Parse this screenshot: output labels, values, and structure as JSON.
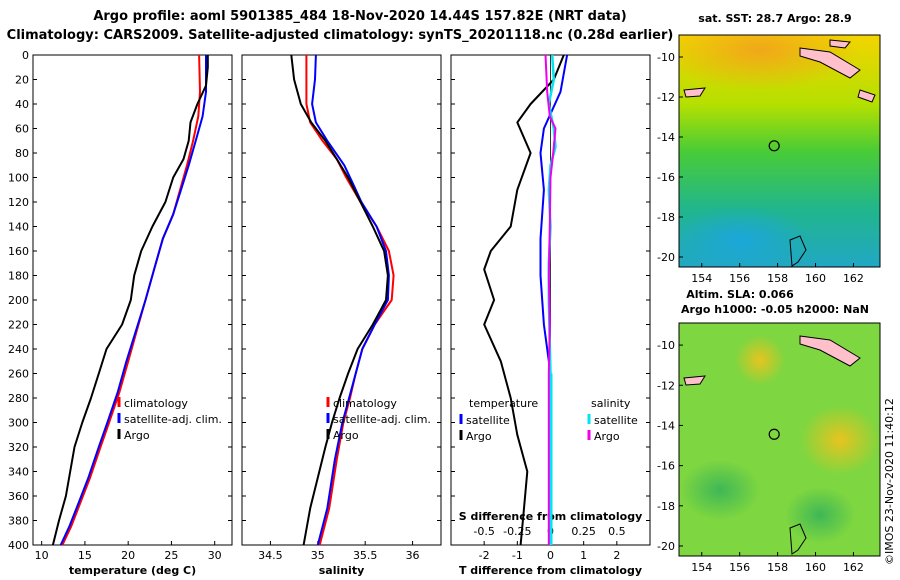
{
  "header": {
    "line1": "Argo profile: aoml 5901385_484 18-Nov-2020 14.44S 157.82E (NRT data)",
    "line2": "Climatology: CARS2009. Satellite-adjusted climatology: synTS_20201118.nc (0.28d earlier)"
  },
  "colors": {
    "climatology": "#ff0000",
    "satellite": "#0000ff",
    "argo": "#000000",
    "sat_salinity": "#00e5ee",
    "argo_salinity": "#ee00ee"
  },
  "chart_data": [
    {
      "type": "line",
      "id": "temperature",
      "xlabel": "temperature (deg C)",
      "xlim": [
        9,
        32
      ],
      "ylim": [
        0,
        400
      ],
      "xticks": [
        10,
        15,
        20,
        25,
        30
      ],
      "yticks": [
        0,
        20,
        40,
        60,
        80,
        100,
        120,
        140,
        160,
        180,
        200,
        220,
        240,
        260,
        280,
        300,
        320,
        340,
        360,
        380,
        400
      ],
      "legend": [
        "climatology",
        "satellite-adj. clim.",
        "Argo"
      ],
      "series": [
        {
          "name": "climatology",
          "color": "#ff0000",
          "points": [
            [
              28.2,
              0
            ],
            [
              28.3,
              30
            ],
            [
              28.1,
              50
            ],
            [
              27.5,
              70
            ],
            [
              26.8,
              90
            ],
            [
              26.0,
              110
            ],
            [
              25.2,
              130
            ],
            [
              24.0,
              150
            ],
            [
              23.0,
              175
            ],
            [
              22.0,
              200
            ],
            [
              21.0,
              225
            ],
            [
              20.0,
              250
            ],
            [
              19.0,
              275
            ],
            [
              17.8,
              300
            ],
            [
              16.8,
              320
            ],
            [
              15.6,
              345
            ],
            [
              14.5,
              365
            ],
            [
              13.4,
              385
            ],
            [
              12.4,
              400
            ]
          ]
        },
        {
          "name": "satellite-adj. clim.",
          "color": "#0000ff",
          "points": [
            [
              29.0,
              0
            ],
            [
              29.0,
              30
            ],
            [
              28.6,
              50
            ],
            [
              27.8,
              70
            ],
            [
              27.0,
              90
            ],
            [
              26.1,
              110
            ],
            [
              25.2,
              130
            ],
            [
              24.0,
              150
            ],
            [
              23.0,
              175
            ],
            [
              22.0,
              200
            ],
            [
              20.9,
              225
            ],
            [
              19.8,
              250
            ],
            [
              18.8,
              275
            ],
            [
              17.6,
              300
            ],
            [
              16.6,
              320
            ],
            [
              15.4,
              345
            ],
            [
              14.3,
              365
            ],
            [
              13.2,
              385
            ],
            [
              12.2,
              400
            ]
          ]
        },
        {
          "name": "Argo",
          "color": "#000000",
          "points": [
            [
              29.2,
              0
            ],
            [
              29.2,
              10
            ],
            [
              29.0,
              25
            ],
            [
              28.0,
              40
            ],
            [
              27.2,
              55
            ],
            [
              27.0,
              70
            ],
            [
              26.4,
              85
            ],
            [
              25.2,
              100
            ],
            [
              24.3,
              120
            ],
            [
              22.8,
              140
            ],
            [
              21.5,
              160
            ],
            [
              20.7,
              180
            ],
            [
              20.3,
              200
            ],
            [
              19.3,
              220
            ],
            [
              17.5,
              240
            ],
            [
              16.6,
              260
            ],
            [
              15.7,
              280
            ],
            [
              14.7,
              300
            ],
            [
              13.8,
              320
            ],
            [
              13.3,
              340
            ],
            [
              12.8,
              360
            ],
            [
              12.0,
              380
            ],
            [
              11.3,
              400
            ]
          ]
        }
      ]
    },
    {
      "type": "line",
      "id": "salinity",
      "xlabel": "salinity",
      "xlim": [
        34.2,
        36.3
      ],
      "ylim": [
        0,
        400
      ],
      "xticks": [
        34.5,
        35,
        35.5,
        36
      ],
      "xtick_labels": [
        "34.5",
        "35",
        "35.5",
        "36"
      ],
      "legend": [
        "climatology",
        "satellite-adj. clim.",
        "Argo"
      ],
      "series": [
        {
          "name": "climatology",
          "color": "#ff0000",
          "points": [
            [
              34.88,
              0
            ],
            [
              34.88,
              40
            ],
            [
              34.92,
              55
            ],
            [
              35.05,
              70
            ],
            [
              35.2,
              85
            ],
            [
              35.3,
              100
            ],
            [
              35.45,
              120
            ],
            [
              35.62,
              140
            ],
            [
              35.75,
              160
            ],
            [
              35.8,
              180
            ],
            [
              35.78,
              200
            ],
            [
              35.6,
              220
            ],
            [
              35.47,
              240
            ],
            [
              35.4,
              260
            ],
            [
              35.34,
              280
            ],
            [
              35.27,
              300
            ],
            [
              35.2,
              330
            ],
            [
              35.12,
              370
            ],
            [
              35.02,
              400
            ]
          ]
        },
        {
          "name": "satellite-adj. clim.",
          "color": "#0000ff",
          "points": [
            [
              34.98,
              0
            ],
            [
              34.97,
              20
            ],
            [
              34.94,
              40
            ],
            [
              34.98,
              55
            ],
            [
              35.1,
              70
            ],
            [
              35.28,
              90
            ],
            [
              35.37,
              105
            ],
            [
              35.46,
              120
            ],
            [
              35.62,
              140
            ],
            [
              35.72,
              160
            ],
            [
              35.75,
              180
            ],
            [
              35.74,
              200
            ],
            [
              35.6,
              220
            ],
            [
              35.47,
              240
            ],
            [
              35.4,
              260
            ],
            [
              35.33,
              280
            ],
            [
              35.26,
              300
            ],
            [
              35.18,
              330
            ],
            [
              35.1,
              370
            ],
            [
              35.0,
              400
            ]
          ]
        },
        {
          "name": "Argo",
          "color": "#000000",
          "points": [
            [
              34.72,
              0
            ],
            [
              34.75,
              20
            ],
            [
              34.82,
              40
            ],
            [
              34.93,
              55
            ],
            [
              35.08,
              70
            ],
            [
              35.2,
              85
            ],
            [
              35.32,
              100
            ],
            [
              35.45,
              120
            ],
            [
              35.58,
              140
            ],
            [
              35.7,
              160
            ],
            [
              35.74,
              180
            ],
            [
              35.72,
              200
            ],
            [
              35.58,
              220
            ],
            [
              35.42,
              240
            ],
            [
              35.32,
              260
            ],
            [
              35.23,
              280
            ],
            [
              35.15,
              300
            ],
            [
              35.08,
              320
            ],
            [
              35.0,
              345
            ],
            [
              34.92,
              370
            ],
            [
              34.85,
              400
            ]
          ]
        }
      ]
    },
    {
      "type": "line",
      "id": "difference",
      "xlabel": "T difference from climatology",
      "top_xlabel": "S difference from climatology",
      "xlim": [
        -3,
        3
      ],
      "ylim": [
        0,
        400
      ],
      "xticks": [
        -2,
        -1,
        0,
        1,
        2
      ],
      "xtick_labels": [
        "-2",
        "-1",
        "0",
        "1",
        "2"
      ],
      "top_ticks": [
        -0.5,
        -0.25,
        0,
        0.25,
        0.5
      ],
      "top_tick_labels": [
        "-0.5",
        "-0.25",
        "0",
        "0.25",
        "0.5"
      ],
      "top_scale": 4,
      "legend_groups": {
        "temperature": "temperature",
        "salinity": "salinity"
      },
      "legend": [
        "satellite",
        "Argo",
        "satellite",
        "Argo"
      ],
      "series": [
        {
          "name": "T satellite",
          "color": "#0000ff",
          "points": [
            [
              0.5,
              0
            ],
            [
              0.3,
              30
            ],
            [
              -0.2,
              60
            ],
            [
              -0.3,
              80
            ],
            [
              -0.2,
              110
            ],
            [
              -0.3,
              150
            ],
            [
              -0.3,
              180
            ],
            [
              -0.2,
              220
            ],
            [
              0,
              260
            ],
            [
              0,
              400
            ]
          ]
        },
        {
          "name": "T Argo",
          "color": "#000000",
          "points": [
            [
              0.4,
              0
            ],
            [
              0.1,
              20
            ],
            [
              -0.6,
              40
            ],
            [
              -1.0,
              55
            ],
            [
              -0.6,
              80
            ],
            [
              -1.0,
              110
            ],
            [
              -1.2,
              140
            ],
            [
              -1.8,
              160
            ],
            [
              -2.0,
              175
            ],
            [
              -1.7,
              200
            ],
            [
              -2.0,
              220
            ],
            [
              -1.5,
              250
            ],
            [
              -1.2,
              280
            ],
            [
              -1.0,
              310
            ],
            [
              -0.7,
              340
            ],
            [
              -0.8,
              370
            ],
            [
              -0.9,
              400
            ]
          ]
        },
        {
          "name": "S satellite",
          "color": "#00e5ee",
          "points": [
            [
              0.05,
              0
            ],
            [
              0.1,
              20
            ],
            [
              -0.05,
              40
            ],
            [
              0.1,
              60
            ],
            [
              0.15,
              75
            ],
            [
              0.0,
              90
            ],
            [
              -0.05,
              110
            ],
            [
              0.0,
              140
            ],
            [
              -0.05,
              170
            ],
            [
              -0.05,
              200
            ],
            [
              0,
              260
            ],
            [
              0,
              400
            ]
          ]
        },
        {
          "name": "S Argo",
          "color": "#ee00ee",
          "points": [
            [
              -0.15,
              0
            ],
            [
              -0.1,
              30
            ],
            [
              -0.02,
              50
            ],
            [
              0.15,
              60
            ],
            [
              0.08,
              80
            ],
            [
              0.0,
              100
            ],
            [
              -0.02,
              140
            ],
            [
              -0.05,
              180
            ],
            [
              -0.02,
              220
            ],
            [
              -0.05,
              260
            ],
            [
              -0.05,
              300
            ],
            [
              -0.05,
              340
            ],
            [
              -0.05,
              380
            ],
            [
              -0.05,
              400
            ]
          ]
        }
      ]
    }
  ],
  "maps": [
    {
      "id": "sst",
      "title": "sat. SST: 28.7 Argo: 28.9",
      "lon_ticks": [
        154,
        156,
        158,
        160,
        162
      ],
      "lat_ticks": [
        -10,
        -12,
        -14,
        -16,
        -18,
        -20
      ],
      "lat_tick_labels": [
        "-10",
        "-12",
        "-14",
        "-16",
        "-18",
        "-20"
      ],
      "marker": {
        "lon": 157.82,
        "lat": -14.44
      }
    },
    {
      "id": "sla",
      "title": "Altim. SLA: 0.066",
      "subtitle": "Argo h1000: -0.05 h2000: NaN",
      "lon_ticks": [
        154,
        156,
        158,
        160,
        162
      ],
      "lat_ticks": [
        -10,
        -12,
        -14,
        -16,
        -18,
        -20
      ],
      "lat_tick_labels": [
        "-10",
        "-12",
        "-14",
        "-16",
        "-18",
        "-20"
      ],
      "marker": {
        "lon": 157.82,
        "lat": -14.44
      }
    }
  ],
  "credit": "©IMOS 23-Nov-2020 11:40:12"
}
